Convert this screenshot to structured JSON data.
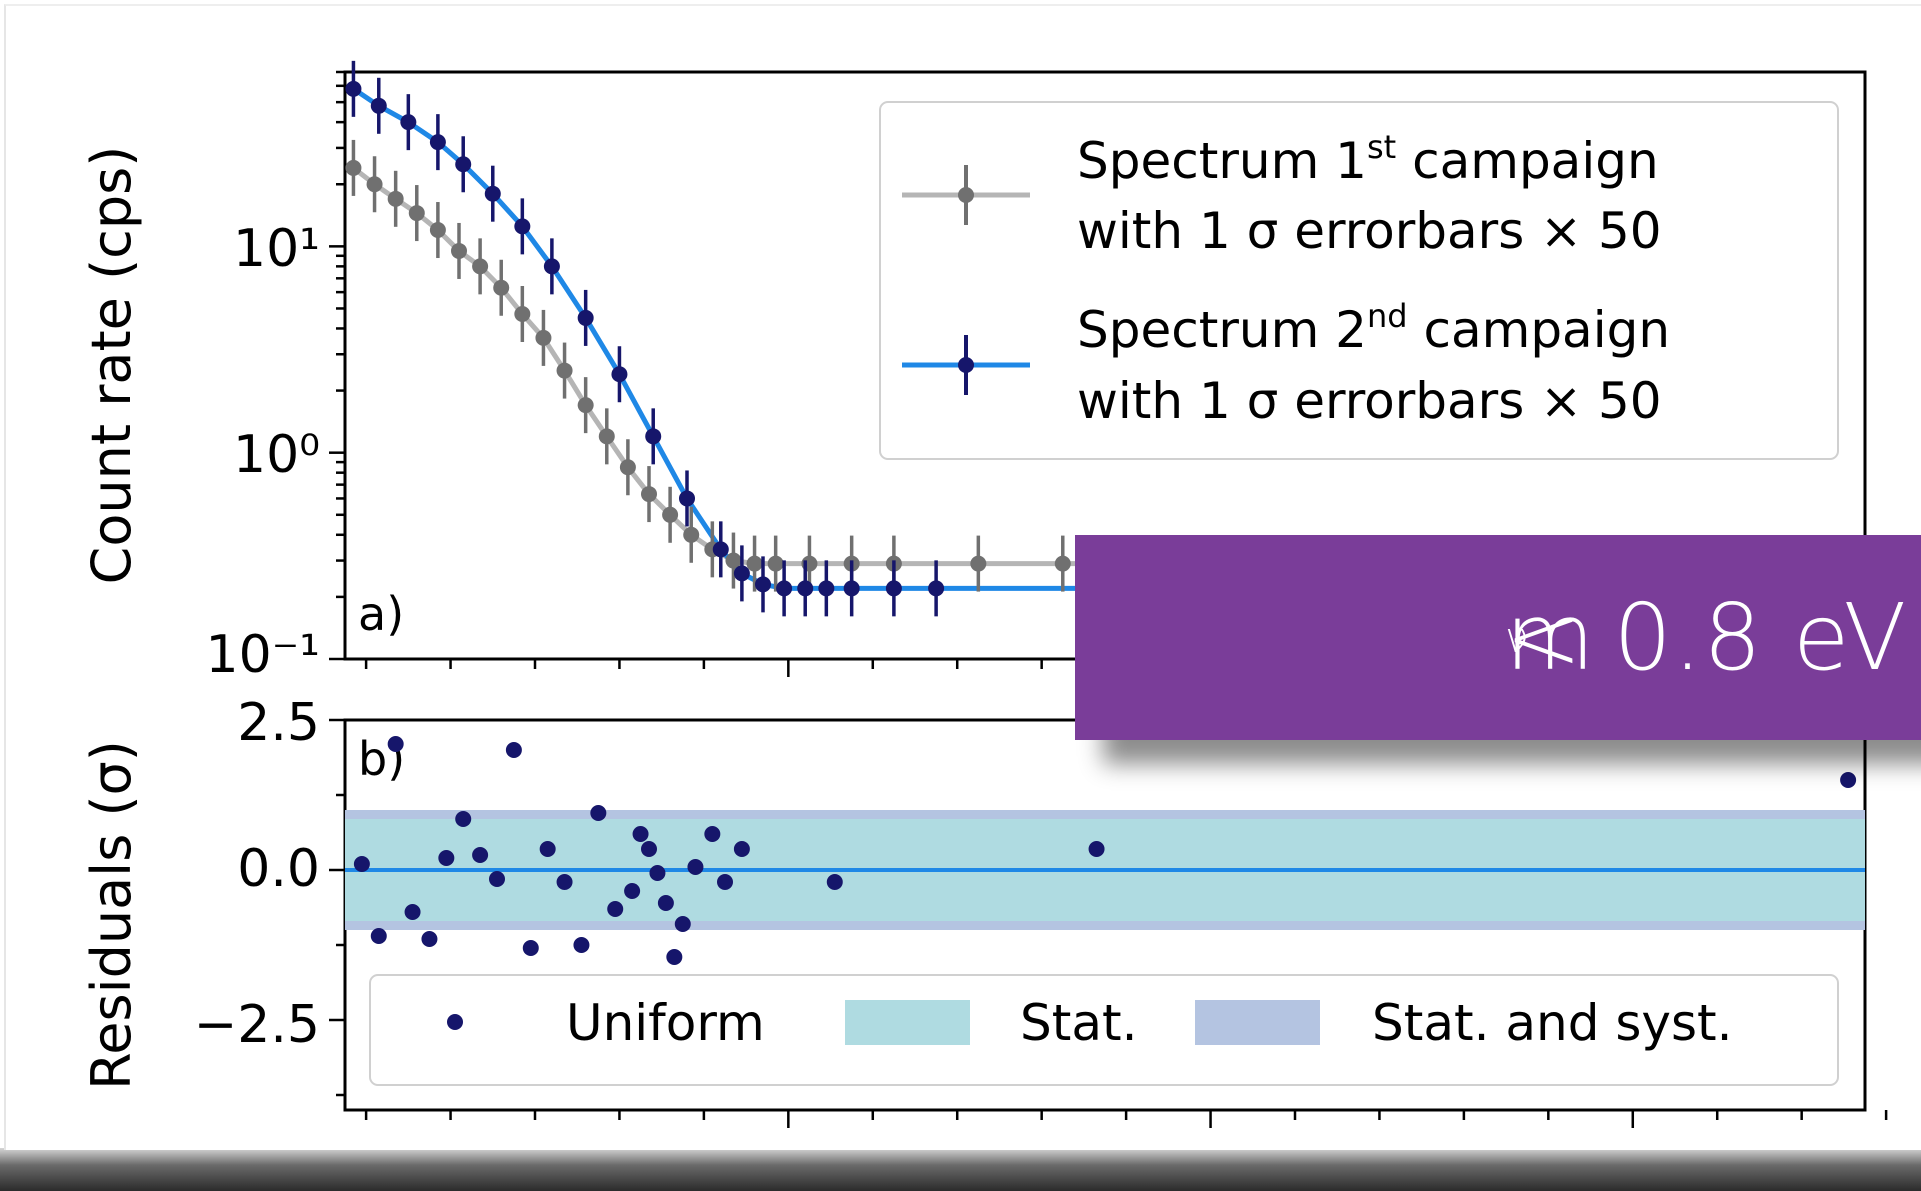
{
  "overlay": {
    "symbol": "m",
    "subscript": "ν",
    "text": "< 0.8 eV ("
  },
  "chart_data": [
    {
      "panel": "a)",
      "type": "scatter",
      "yscale": "log",
      "ylabel": "Count rate (cps)",
      "ylim": [
        0.1,
        70
      ],
      "xlim": [
        0,
        36
      ],
      "yticklabels": [
        "10⁻¹",
        "10⁰",
        "10¹"
      ],
      "legend": {
        "placement": "top-right",
        "entries": [
          {
            "line1": "Spectrum 1",
            "sup": "st",
            "line1b": " campaign",
            "line2": "with 1 σ errorbars × 50"
          },
          {
            "line1": "Spectrum 2",
            "sup": "nd",
            "line1b": " campaign",
            "line2": "with 1 σ errorbars × 50"
          }
        ]
      },
      "series": [
        {
          "color": "#707070",
          "fit_color": "#b5b5b5",
          "x": [
            0.2,
            0.7,
            1.2,
            1.7,
            2.2,
            2.7,
            3.2,
            3.7,
            4.2,
            4.7,
            5.2,
            5.7,
            6.2,
            6.7,
            7.2,
            7.7,
            8.2,
            8.7,
            9.2,
            9.7,
            10.2,
            11,
            12,
            13,
            15,
            17,
            19
          ],
          "y": [
            24,
            20,
            17,
            14.5,
            12,
            9.5,
            8,
            6.3,
            4.7,
            3.6,
            2.5,
            1.7,
            1.2,
            0.85,
            0.63,
            0.5,
            0.4,
            0.34,
            0.3,
            0.29,
            0.29,
            0.29,
            0.29,
            0.29,
            0.29,
            0.29,
            0.29
          ]
        },
        {
          "color": "#16166b",
          "fit_color": "#1f88e6",
          "x": [
            0.2,
            0.8,
            1.5,
            2.2,
            2.8,
            3.5,
            4.2,
            4.9,
            5.7,
            6.5,
            7.3,
            8.1,
            8.9,
            9.4,
            9.9,
            10.4,
            10.9,
            11.4,
            12,
            13,
            14
          ],
          "y": [
            58,
            48,
            40,
            32,
            25,
            18,
            12.5,
            8,
            4.5,
            2.4,
            1.2,
            0.6,
            0.34,
            0.26,
            0.23,
            0.22,
            0.22,
            0.22,
            0.22,
            0.22,
            0.22
          ]
        }
      ]
    },
    {
      "panel": "b)",
      "type": "scatter",
      "ylabel": "Residuals (σ)",
      "ylim": [
        -4,
        2.5
      ],
      "xlim": [
        0,
        36
      ],
      "yticklabels": [
        "−2.5",
        "0.0",
        "2.5"
      ],
      "legend": {
        "placement": "bottom",
        "entries": [
          "Uniform",
          "Stat.",
          "Stat. and syst."
        ]
      },
      "bands": {
        "stat": 0.85,
        "stat_syst": 1.0
      },
      "points": {
        "x": [
          0.4,
          0.8,
          1.2,
          1.6,
          2.0,
          2.4,
          2.8,
          3.2,
          3.6,
          4.0,
          4.4,
          4.8,
          5.2,
          5.6,
          6.0,
          6.4,
          6.8,
          7.0,
          7.2,
          7.4,
          7.6,
          7.8,
          8.0,
          8.3,
          8.7,
          9.0,
          9.4,
          10.6,
          11.6,
          17.8,
          35.6
        ],
        "y": [
          0.1,
          -1.1,
          2.1,
          -0.7,
          -1.15,
          0.2,
          0.85,
          0.25,
          -0.15,
          2.0,
          -1.3,
          0.35,
          -0.2,
          -1.25,
          0.95,
          -0.65,
          -0.35,
          0.6,
          0.35,
          -0.05,
          -0.55,
          -1.45,
          -0.9,
          0.05,
          0.6,
          -0.2,
          0.35,
          0,
          0,
          0,
          1.5
        ]
      }
    }
  ]
}
